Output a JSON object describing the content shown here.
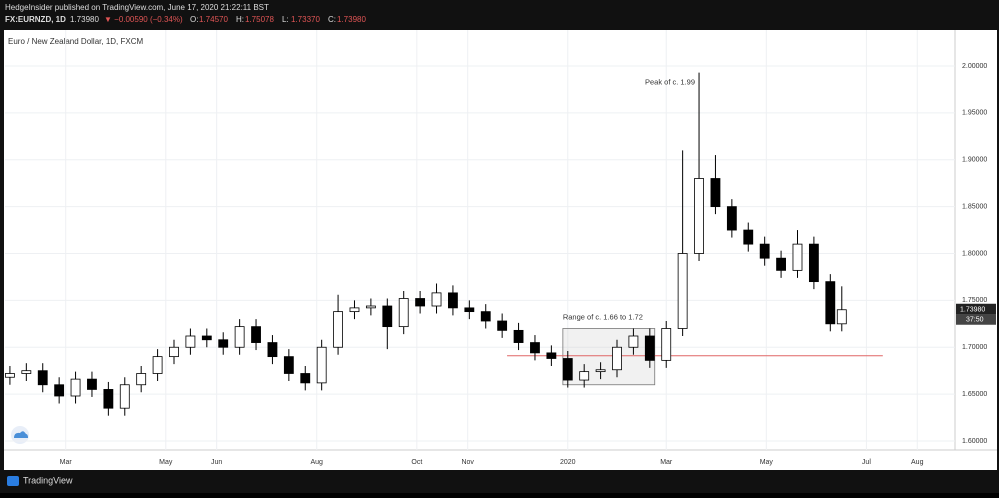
{
  "header": {
    "publisher": "HedgeInsider published on TradingView.com, June 17, 2020 21:22:11 BST",
    "symbol": "FX:EURNZD, 1D",
    "price": "1.73980",
    "change": "▼ −0.00590 (−0.34%)",
    "ohlc": [
      {
        "key": "O:",
        "value": "1.74570"
      },
      {
        "key": "H:",
        "value": "1.75078"
      },
      {
        "key": "L:",
        "value": "1.73370"
      },
      {
        "key": "C:",
        "value": "1.73980"
      }
    ]
  },
  "footer": {
    "brand": "TradingView"
  },
  "chart_data": {
    "type": "candlestick",
    "title": "Euro / New Zealand Dollar, 1D, FXCM",
    "up_color": "#ffffff",
    "down_color": "#000000",
    "x": [
      25,
      35,
      45,
      55,
      65,
      75,
      85,
      95,
      105,
      115,
      125,
      135,
      145,
      155,
      165,
      175,
      185,
      195,
      205,
      215,
      225,
      235,
      245,
      255,
      265,
      275,
      285,
      295,
      305,
      315,
      325,
      335,
      345,
      355,
      365,
      375,
      385,
      395,
      405,
      415,
      425,
      435,
      445,
      455,
      465,
      475,
      485,
      495,
      505,
      515,
      525,
      532
    ],
    "open": [
      1.668,
      1.672,
      1.675,
      1.66,
      1.648,
      1.666,
      1.655,
      1.635,
      1.66,
      1.672,
      1.69,
      1.7,
      1.712,
      1.708,
      1.7,
      1.722,
      1.705,
      1.69,
      1.672,
      1.662,
      1.7,
      1.738,
      1.742,
      1.744,
      1.722,
      1.752,
      1.744,
      1.758,
      1.742,
      1.738,
      1.728,
      1.718,
      1.705,
      1.694,
      1.688,
      1.665,
      1.674,
      1.676,
      1.7,
      1.712,
      1.686,
      1.72,
      1.8,
      1.88,
      1.85,
      1.825,
      1.81,
      1.795,
      1.782,
      1.81,
      1.77,
      1.725
    ],
    "high": [
      1.68,
      1.683,
      1.683,
      1.668,
      1.674,
      1.674,
      1.663,
      1.668,
      1.68,
      1.698,
      1.708,
      1.72,
      1.72,
      1.716,
      1.73,
      1.73,
      1.713,
      1.698,
      1.68,
      1.708,
      1.756,
      1.75,
      1.752,
      1.752,
      1.76,
      1.76,
      1.768,
      1.766,
      1.75,
      1.746,
      1.736,
      1.726,
      1.713,
      1.702,
      1.696,
      1.682,
      1.684,
      1.708,
      1.72,
      1.72,
      1.728,
      1.91,
      1.993,
      1.905,
      1.858,
      1.833,
      1.818,
      1.803,
      1.825,
      1.818,
      1.778,
      1.765
    ],
    "low": [
      1.66,
      1.664,
      1.652,
      1.64,
      1.64,
      1.647,
      1.627,
      1.627,
      1.652,
      1.664,
      1.682,
      1.692,
      1.7,
      1.692,
      1.692,
      1.697,
      1.682,
      1.664,
      1.654,
      1.654,
      1.692,
      1.73,
      1.734,
      1.698,
      1.714,
      1.736,
      1.736,
      1.734,
      1.73,
      1.72,
      1.71,
      1.697,
      1.686,
      1.68,
      1.657,
      1.657,
      1.666,
      1.668,
      1.692,
      1.678,
      1.678,
      1.712,
      1.792,
      1.842,
      1.817,
      1.802,
      1.787,
      1.774,
      1.774,
      1.762,
      1.717,
      1.717
    ],
    "close": [
      1.672,
      1.675,
      1.66,
      1.648,
      1.666,
      1.655,
      1.635,
      1.66,
      1.672,
      1.69,
      1.7,
      1.712,
      1.708,
      1.7,
      1.722,
      1.705,
      1.69,
      1.672,
      1.662,
      1.7,
      1.738,
      1.742,
      1.744,
      1.722,
      1.752,
      1.744,
      1.758,
      1.742,
      1.738,
      1.728,
      1.718,
      1.705,
      1.694,
      1.688,
      1.665,
      1.674,
      1.676,
      1.7,
      1.712,
      1.686,
      1.72,
      1.8,
      1.88,
      1.85,
      1.825,
      1.81,
      1.795,
      1.782,
      1.81,
      1.77,
      1.725,
      1.74
    ],
    "xlim": [
      22,
      601
    ],
    "xticks": [
      {
        "value": 59,
        "label": "Mar"
      },
      {
        "value": 120,
        "label": "May"
      },
      {
        "value": 151,
        "label": "Jun"
      },
      {
        "value": 212,
        "label": "Aug"
      },
      {
        "value": 273,
        "label": "Oct"
      },
      {
        "value": 304,
        "label": "Nov"
      },
      {
        "value": 365,
        "label": "2020"
      },
      {
        "value": 425,
        "label": "Mar"
      },
      {
        "value": 486,
        "label": "May"
      },
      {
        "value": 547,
        "label": "Jul"
      },
      {
        "value": 578,
        "label": "Aug"
      }
    ],
    "ylim": [
      1.5904,
      2.0384
    ],
    "yticks": [
      {
        "value": 1.6,
        "label": "1.60000"
      },
      {
        "value": 1.65,
        "label": "1.65000"
      },
      {
        "value": 1.7,
        "label": "1.70000"
      },
      {
        "value": 1.75,
        "label": "1.75000"
      },
      {
        "value": 1.8,
        "label": "1.80000"
      },
      {
        "value": 1.85,
        "label": "1.85000"
      },
      {
        "value": 1.9,
        "label": "1.90000"
      },
      {
        "value": 1.95,
        "label": "1.95000"
      },
      {
        "value": 2.0,
        "label": "2.00000"
      }
    ],
    "grid": true,
    "last_price_label": "1.73980",
    "countdown": "37:50",
    "peak_annotation": {
      "text": "Peak of c. 1.99",
      "value": 1.99,
      "x": 445
    },
    "range_annotation": {
      "text": "Range of c. 1.66 to 1.72",
      "low": 1.66,
      "high": 1.72,
      "x": [
        362,
        418
      ]
    },
    "hline": {
      "value": 1.691,
      "x": [
        328,
        557
      ],
      "color": "#e06666"
    }
  }
}
